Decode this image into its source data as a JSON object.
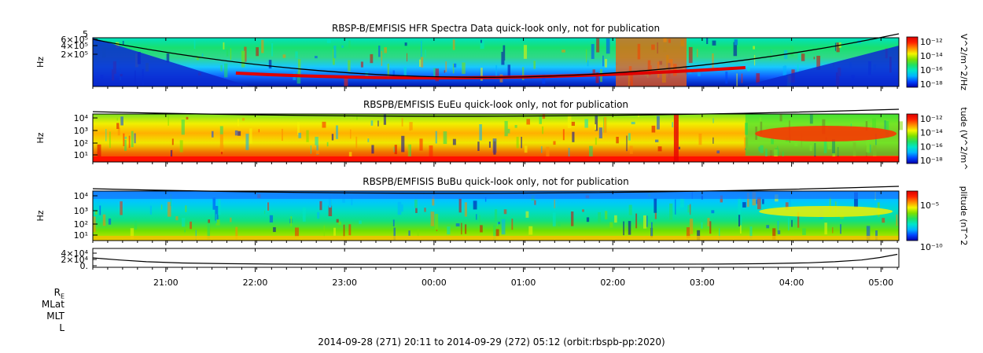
{
  "footer": "2014-09-28 (271) 20:11 to 2014-09-29 (272) 05:12 (orbit:rbspb-pp:2020)",
  "ephemeris_labels": [
    "R",
    "MLat",
    "MLT",
    "L"
  ],
  "ephemeris_subscript": "E",
  "x_axis": {
    "ticks": [
      "21:00",
      "22:00",
      "23:00",
      "00:00",
      "01:00",
      "02:00",
      "03:00",
      "04:00",
      "05:00"
    ],
    "tick_hours": [
      0.8167,
      1.8167,
      2.8167,
      3.8167,
      4.8167,
      5.8167,
      6.8167,
      7.8167,
      8.8167
    ],
    "span_hours": 9.0167
  },
  "colors": {
    "colorbar_stops": [
      "#0000aa",
      "#0044ff",
      "#00b4ff",
      "#00e5c8",
      "#22e060",
      "#7ee000",
      "#f5f500",
      "#ff8c00",
      "#ff2200",
      "#dd0000"
    ],
    "trace": "#000000"
  },
  "chart_data": [
    {
      "type": "heatmap",
      "title": "RBSP-B/EMFISIS  HFR Spectra Data quick-look only, not for publication",
      "ylabel": "Hz",
      "y_scale": "log",
      "y_tick_labels": [
        "6×10⁵",
        "4×10⁵",
        "2×10⁵"
      ],
      "y_top_label": "5",
      "colorbar_label": "V^2/m^2/Hz",
      "colorbar_ticks": [
        "10⁻¹²",
        "10⁻¹⁴",
        "10⁻¹⁶",
        "10⁻¹⁸"
      ],
      "overlay": "electron cyclotron frequency trace (black line)"
    },
    {
      "type": "heatmap",
      "title": "RBSPB/EMFISIS  EuEu quick-look only, not for publication",
      "ylabel": "Hz",
      "y_scale": "log",
      "y_tick_labels": [
        "10⁴",
        "10³",
        "10²",
        "10¹"
      ],
      "colorbar_label": "tude (V^2/m^",
      "colorbar_ticks": [
        "10⁻¹²",
        "10⁻¹⁴",
        "10⁻¹⁶",
        "10⁻¹⁸"
      ],
      "overlay": "electron cyclotron frequency trace (black line)"
    },
    {
      "type": "heatmap",
      "title": "RBSPB/EMFISIS  BuBu quick-look only, not for publication",
      "ylabel": "Hz",
      "y_scale": "log",
      "y_tick_labels": [
        "10⁴",
        "10³",
        "10²",
        "10¹"
      ],
      "colorbar_label": "plitude (nT^2",
      "colorbar_ticks": [
        "10⁻⁵",
        "10⁻¹⁰"
      ],
      "overlay": "electron cyclotron frequency trace (black line)"
    },
    {
      "type": "line",
      "title": "",
      "y_tick_labels": [
        "4×10⁴",
        "2×10⁴",
        "0."
      ],
      "ylim": [
        0,
        40000
      ],
      "x": [
        0.0,
        0.3,
        0.6,
        1.0,
        1.5,
        2.0,
        3.0,
        4.0,
        5.0,
        6.0,
        7.0,
        7.5,
        8.0,
        8.3,
        8.6,
        8.8,
        9.0
      ],
      "y": [
        20000,
        14000,
        9000,
        5500,
        3500,
        2500,
        2000,
        1900,
        1900,
        2000,
        2500,
        3500,
        6000,
        9000,
        14000,
        21000,
        30000
      ]
    }
  ]
}
